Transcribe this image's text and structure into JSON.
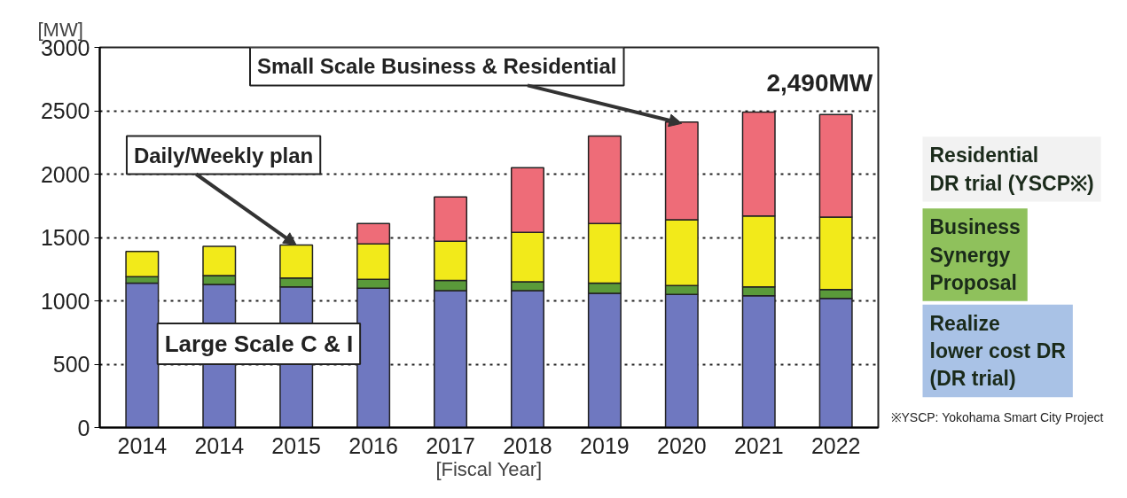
{
  "chart_data": {
    "type": "bar",
    "stacked": true,
    "xlabel": "[Fiscal Year]",
    "ylabel": "[MW]",
    "categories": [
      "2014",
      "2014",
      "2015",
      "2016",
      "2017",
      "2018",
      "2019",
      "2020",
      "2021",
      "2022"
    ],
    "series": [
      {
        "color": "#6f78c0",
        "values": [
          1140,
          1130,
          1110,
          1100,
          1080,
          1080,
          1060,
          1050,
          1040,
          1020
        ]
      },
      {
        "color": "#5a9a3a",
        "values": [
          50,
          70,
          70,
          70,
          80,
          70,
          80,
          70,
          70,
          70
        ]
      },
      {
        "color": "#f2ea1a",
        "values": [
          200,
          230,
          260,
          280,
          310,
          390,
          470,
          520,
          560,
          570
        ]
      },
      {
        "color": "#ee6c78",
        "values": [
          null,
          null,
          null,
          160,
          350,
          510,
          690,
          770,
          820,
          810
        ]
      }
    ],
    "ylim": [
      0,
      3000
    ],
    "yticks": [
      0,
      500,
      1000,
      1500,
      2000,
      2500,
      3000
    ],
    "grid": "y",
    "annotations": [
      {
        "text": "Small Scale Business & Residential",
        "x": "2020",
        "y": 2400
      },
      {
        "text": "Daily/Weekly plan",
        "x": "2015",
        "y": 1440
      },
      "Large Scale C & I",
      {
        "text": "2,490MW",
        "x": "2021",
        "y": 2490
      },
      "Residential\nDR trial (YSCP※)",
      "Business\nSynergy\nProposal",
      "Realize\nlower cost DR\n(DR trial)",
      "※YSCP: Yokohama Smart City Project"
    ]
  }
}
